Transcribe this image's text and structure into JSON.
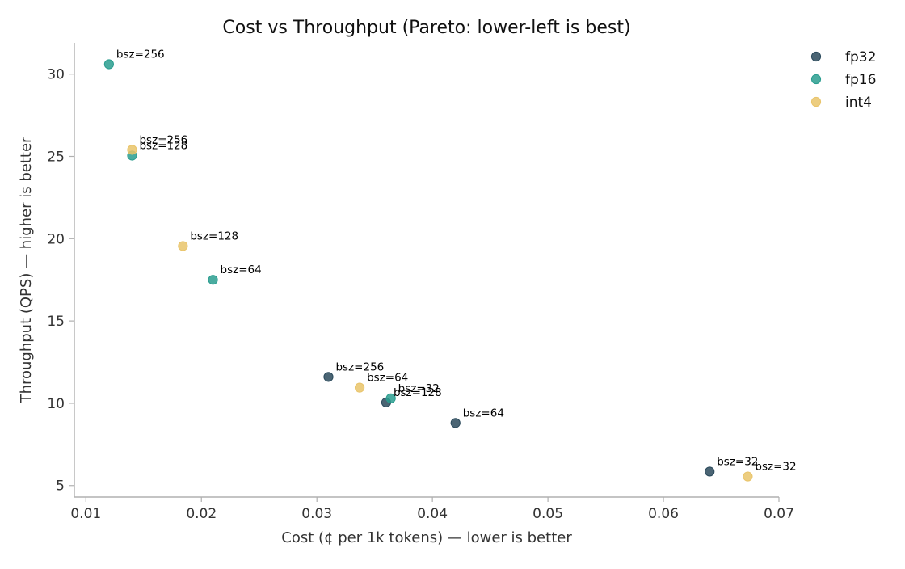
{
  "chart_data": {
    "type": "scatter",
    "title": "Cost vs Throughput (Pareto: lower-left is best)",
    "xlabel": "Cost (¢ per 1k tokens) — lower is better",
    "ylabel": "Throughput (QPS) — higher is better",
    "xlim": [
      0.009,
      0.07
    ],
    "ylim": [
      4.3,
      31.9
    ],
    "xticks": [
      0.01,
      0.02,
      0.03,
      0.04,
      0.05,
      0.06,
      0.07
    ],
    "xtick_labels": [
      "0.01",
      "0.02",
      "0.03",
      "0.04",
      "0.05",
      "0.06",
      "0.07"
    ],
    "yticks": [
      5,
      10,
      15,
      20,
      25,
      30
    ],
    "ytick_labels": [
      "5",
      "10",
      "15",
      "20",
      "25",
      "30"
    ],
    "grid": false,
    "legend_position": "top-right, outside plot",
    "series": [
      {
        "name": "fp32",
        "color": "#2b4a5c",
        "points": [
          {
            "x": 0.031,
            "y": 11.6,
            "label": "bsz=256"
          },
          {
            "x": 0.036,
            "y": 10.05,
            "label": "bsz=128"
          },
          {
            "x": 0.042,
            "y": 8.8,
            "label": "bsz=64"
          },
          {
            "x": 0.064,
            "y": 5.85,
            "label": "bsz=32"
          }
        ]
      },
      {
        "name": "fp16",
        "color": "#2a9d8f",
        "points": [
          {
            "x": 0.012,
            "y": 30.6,
            "label": "bsz=256"
          },
          {
            "x": 0.014,
            "y": 25.05,
            "label": "bsz=128"
          },
          {
            "x": 0.021,
            "y": 17.5,
            "label": "bsz=64"
          },
          {
            "x": 0.0364,
            "y": 10.3,
            "label": "bsz=32"
          }
        ]
      },
      {
        "name": "int4",
        "color": "#e9c46a",
        "points": [
          {
            "x": 0.014,
            "y": 25.4,
            "label": "bsz=256"
          },
          {
            "x": 0.0184,
            "y": 19.55,
            "label": "bsz=128"
          },
          {
            "x": 0.0337,
            "y": 10.95,
            "label": "bsz=64"
          },
          {
            "x": 0.0673,
            "y": 5.55,
            "label": "bsz=32"
          }
        ]
      }
    ]
  }
}
